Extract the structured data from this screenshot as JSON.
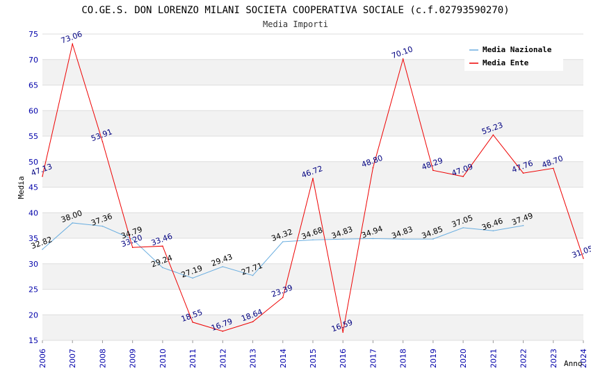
{
  "chart_data": {
    "type": "line",
    "title": "CO.GE.S. DON LORENZO MILANI SOCIETA COOPERATIVA SOCIALE (c.f.02793590270)",
    "subtitle": "Media Importi",
    "xlabel": "Anno",
    "ylabel": "Media",
    "ylim": [
      15,
      75
    ],
    "yticks": [
      15,
      20,
      25,
      30,
      35,
      40,
      45,
      50,
      55,
      60,
      65,
      70,
      75
    ],
    "x": [
      2006,
      2007,
      2008,
      2009,
      2010,
      2011,
      2012,
      2013,
      2014,
      2015,
      2016,
      2017,
      2018,
      2019,
      2020,
      2021,
      2022,
      2023,
      2024
    ],
    "series": [
      {
        "name": "Media Nazionale",
        "color": "#6aaee0",
        "label_color": "#000000",
        "x": [
          2006,
          2007,
          2008,
          2009,
          2010,
          2011,
          2012,
          2013,
          2014,
          2015,
          2016,
          2017,
          2018,
          2019,
          2020,
          2021,
          2022
        ],
        "values": [
          32.82,
          38.0,
          37.36,
          34.79,
          29.24,
          27.19,
          29.43,
          27.71,
          34.32,
          34.68,
          34.83,
          34.94,
          34.83,
          34.85,
          37.05,
          36.46,
          37.49
        ],
        "labels": [
          "32.82",
          "38.00",
          "37.36",
          "34.79",
          "29.24",
          "27.19",
          "29.43",
          "27.71",
          "34.32",
          "34.68",
          "34.83",
          "34.94",
          "34.83",
          "34.85",
          "37.05",
          "36.46",
          "37.49"
        ]
      },
      {
        "name": "Media Ente",
        "color": "#ee0000",
        "label_color": "#000080",
        "x": [
          2006,
          2007,
          2008,
          2009,
          2010,
          2011,
          2012,
          2013,
          2014,
          2015,
          2016,
          2017,
          2018,
          2019,
          2020,
          2021,
          2022,
          2023,
          2024
        ],
        "values": [
          47.13,
          73.06,
          53.91,
          33.2,
          33.46,
          18.55,
          16.79,
          18.64,
          23.39,
          46.72,
          16.59,
          48.8,
          70.1,
          48.29,
          47.09,
          55.23,
          47.76,
          48.7,
          31.05
        ],
        "labels": [
          "47.13",
          "73.06",
          "53.91",
          "33.20",
          "33.46",
          "18.55",
          "16.79",
          "18.64",
          "23.39",
          "46.72",
          "16.59",
          "48.80",
          "70.10",
          "48.29",
          "47.09",
          "55.23",
          "47.76",
          "48.70",
          "31.05"
        ]
      }
    ],
    "legend": {
      "position": "top-right"
    },
    "background_bands": [
      "#ffffff",
      "#f2f2f2"
    ],
    "grid": true
  }
}
